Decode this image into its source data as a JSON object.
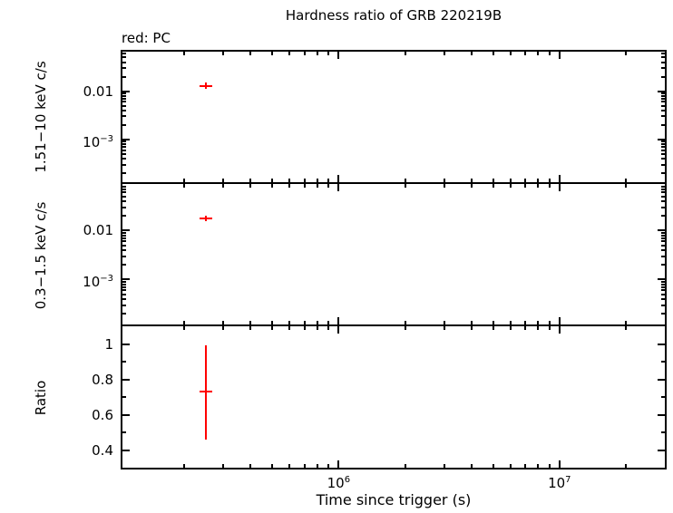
{
  "chart_data": {
    "type": "scatter",
    "title": "Hardness ratio of GRB 220219B",
    "legend": "red: PC",
    "xlabel": "Time since trigger (s)",
    "xscale": "log",
    "xlim": [
      105000,
      30000000
    ],
    "xticks": [
      {
        "v": 1000000,
        "label": "10^6"
      },
      {
        "v": 10000000,
        "label": "10^7"
      }
    ],
    "series_color": "#ff0000",
    "axis_color": "#000000",
    "grid": false,
    "legend_position": "top-left",
    "panels": [
      {
        "ylabel": "1.51−10 keV c/s",
        "yscale": "log",
        "ylim": [
          0.00013,
          0.066
        ],
        "yticks": [
          {
            "v": 0.01,
            "label": "0.01"
          },
          {
            "v": 0.001,
            "label": "10^-3"
          }
        ],
        "points": [
          {
            "x": 250000,
            "y": 0.013,
            "yerr_lo": 0.002,
            "yerr_hi": 0.002
          }
        ]
      },
      {
        "ylabel": "0.3−1.5 keV c/s",
        "yscale": "log",
        "ylim": [
          0.00012,
          0.09
        ],
        "yticks": [
          {
            "v": 0.01,
            "label": "0.01"
          },
          {
            "v": 0.001,
            "label": "10^-3"
          }
        ],
        "points": [
          {
            "x": 250000,
            "y": 0.018,
            "yerr_lo": 0.0025,
            "yerr_hi": 0.0025
          }
        ]
      },
      {
        "ylabel": "Ratio",
        "yscale": "linear",
        "ylim": [
          0.3,
          1.1
        ],
        "yminor_step": 0.1,
        "yticks": [
          {
            "v": 1,
            "label": "1"
          },
          {
            "v": 0.8,
            "label": "0.8"
          },
          {
            "v": 0.6,
            "label": "0.6"
          },
          {
            "v": 0.4,
            "label": "0.4"
          }
        ],
        "points": [
          {
            "x": 250000,
            "y": 0.73,
            "yerr_lo": 0.27,
            "yerr_hi": 0.26
          }
        ]
      }
    ]
  }
}
